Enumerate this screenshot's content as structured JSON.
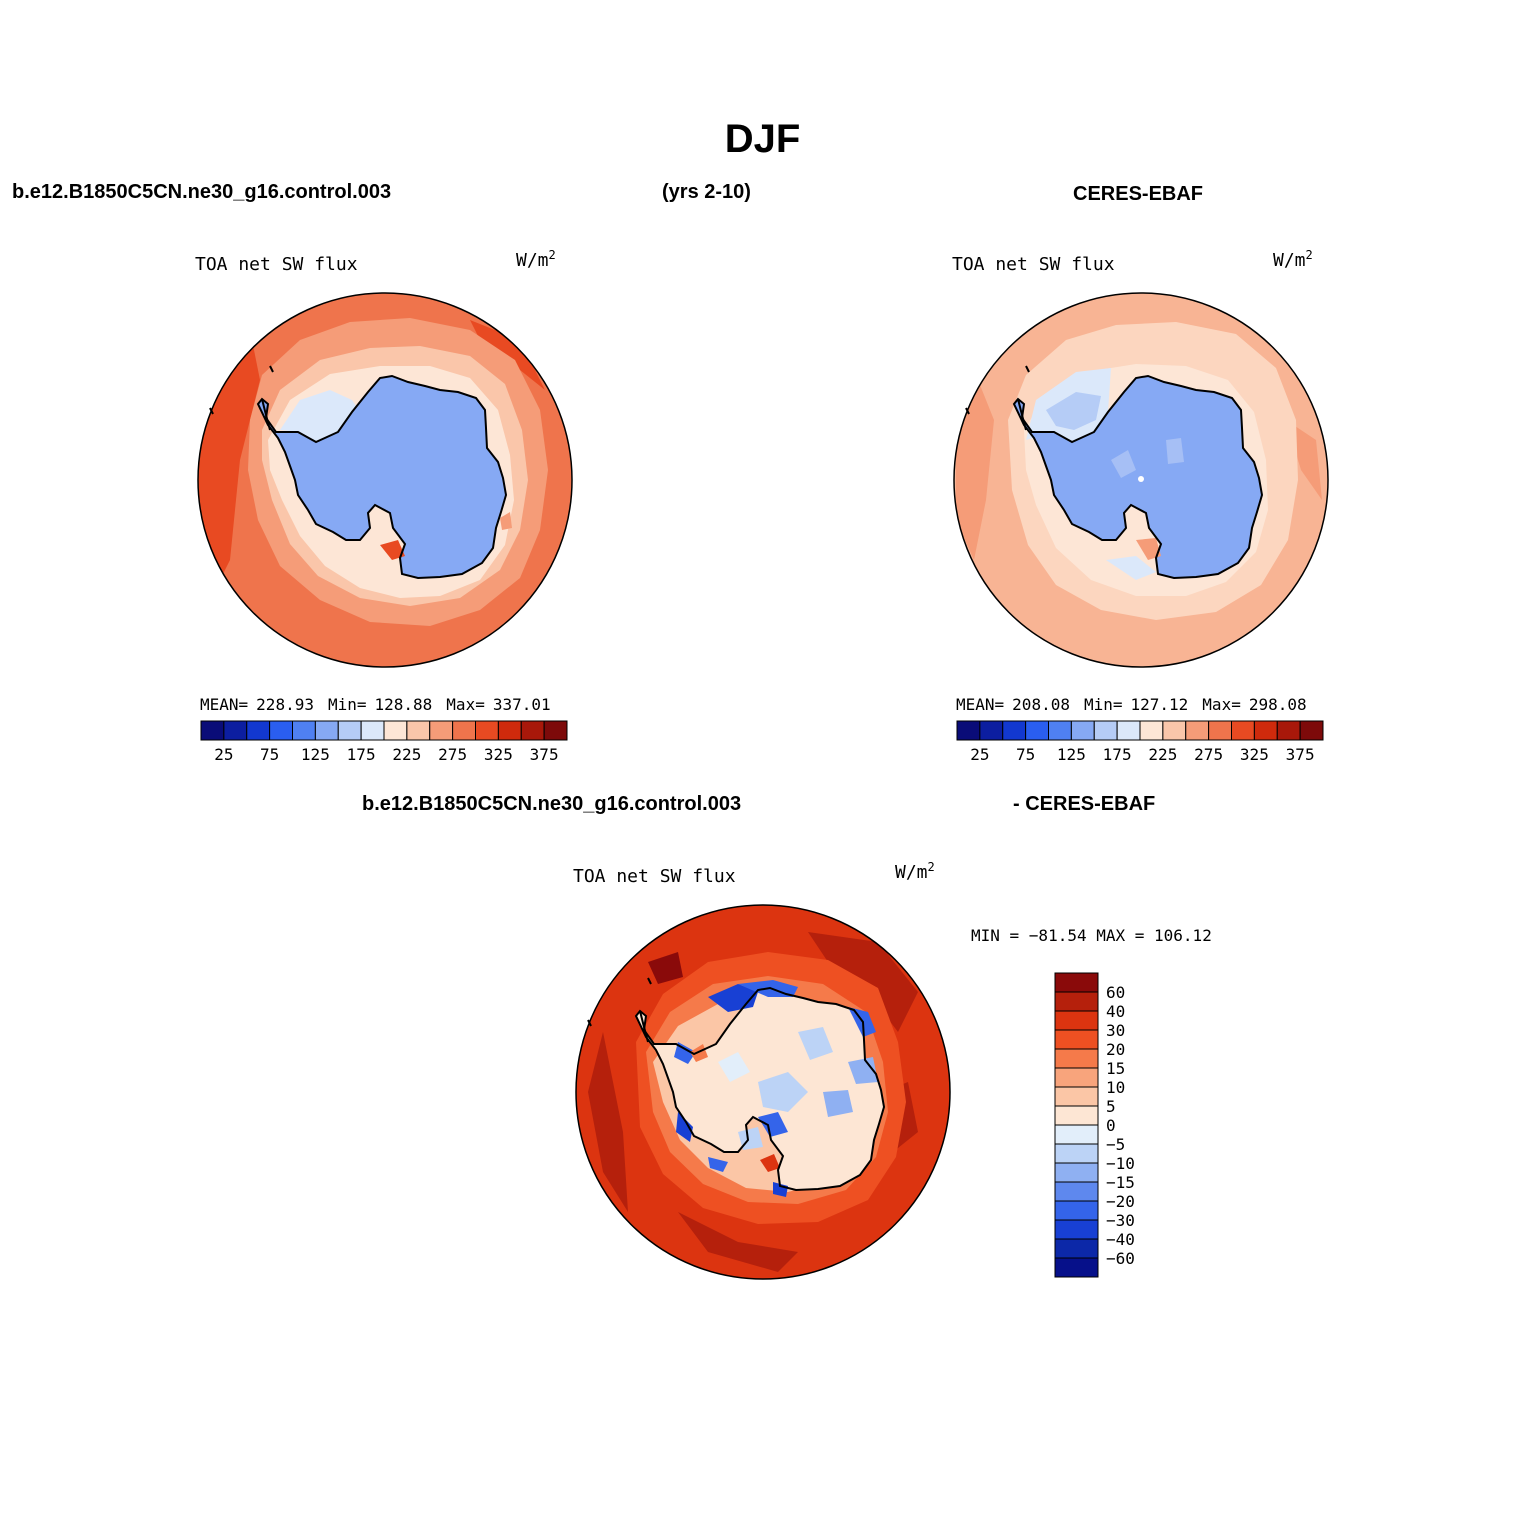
{
  "header": {
    "title": "DJF",
    "case_name": "b.e12.B1850C5CN.ne30_g16.control.003",
    "years": "(yrs 2-10)",
    "obs_name": "CERES-EBAF",
    "diff_case_name": "b.e12.B1850C5CN.ne30_g16.control.003",
    "diff_obs_name": "- CERES-EBAF"
  },
  "panels": [
    {
      "id": "model",
      "variable": "TOA net SW flux",
      "units": "W/m",
      "units_sup": "2",
      "stats": {
        "mean_label": "MEAN=",
        "mean": "228.93",
        "min_label": "Min=",
        "min": "128.88",
        "max_label": "Max=",
        "max": "337.01"
      }
    },
    {
      "id": "obs",
      "variable": "TOA net SW flux",
      "units": "W/m",
      "units_sup": "2",
      "stats": {
        "mean_label": "MEAN=",
        "mean": "208.08",
        "min_label": "Min=",
        "min": "127.12",
        "max_label": "Max=",
        "max": "298.08"
      }
    },
    {
      "id": "diff",
      "variable": "TOA net SW flux",
      "units": "W/m",
      "units_sup": "2",
      "stats_line": "MIN = −81.54 MAX = 106.12"
    }
  ],
  "colorbar_main": {
    "colors": [
      "#0a0c78",
      "#0c1ea0",
      "#1238d0",
      "#2a5ef0",
      "#4f80f2",
      "#86a9f4",
      "#b5ccf6",
      "#dbe8fa",
      "#fde6d6",
      "#fac6aa",
      "#f59c78",
      "#ef744c",
      "#e84a22",
      "#cf2a0c",
      "#a8180a",
      "#7d0a0a"
    ],
    "labels": [
      "25",
      "75",
      "125",
      "175",
      "225",
      "275",
      "325",
      "375"
    ]
  },
  "colorbar_diff": {
    "colors": [
      "#8a0a0a",
      "#b5200c",
      "#dc3410",
      "#ee5022",
      "#f57a4a",
      "#f8a47c",
      "#fbc6a6",
      "#fde6d4",
      "#e2eefa",
      "#bcd3f6",
      "#8fb0f2",
      "#5e88ee",
      "#3464ea",
      "#1840d4",
      "#0c28a8",
      "#06108a"
    ],
    "labels": [
      "60",
      "40",
      "30",
      "20",
      "15",
      "10",
      "5",
      "0",
      "−5",
      "−10",
      "−15",
      "−20",
      "−30",
      "−40",
      "−60"
    ]
  },
  "map_colors": {
    "ocean_far_model": "#ef744c",
    "ocean_mid_model": "#f59c78",
    "ice_model": "#86a9f4",
    "ocean_far_obs": "#f8b494",
    "ocean_mid_obs": "#fcd6bf",
    "ice_obs": "#86a9f4",
    "diff_far": "#dc3410",
    "diff_land": "#fde6d4"
  }
}
